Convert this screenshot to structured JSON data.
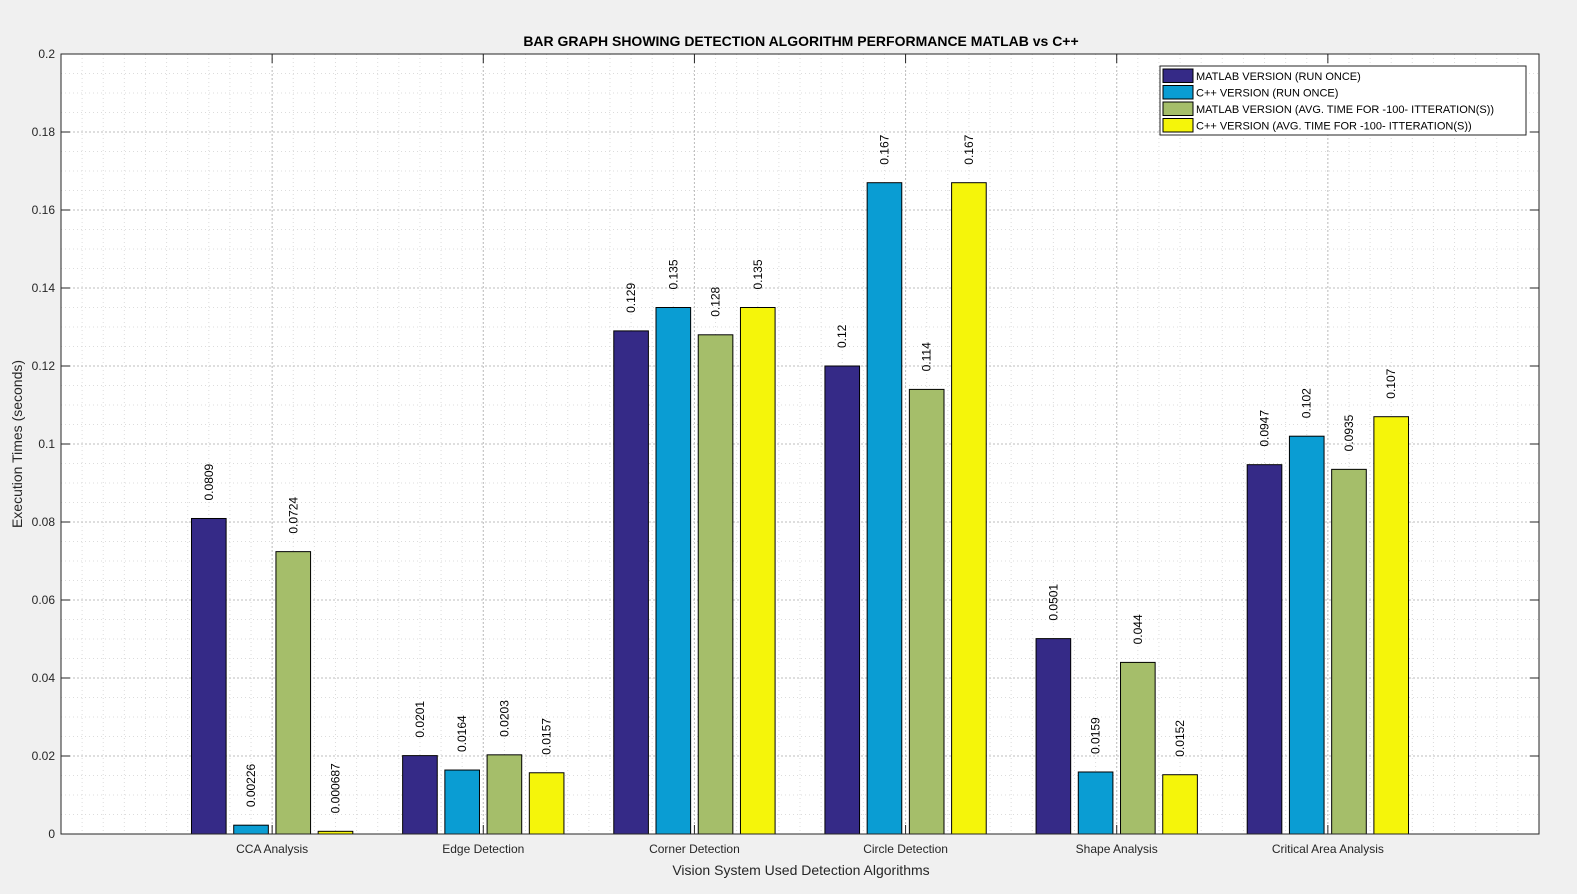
{
  "chart_data": {
    "type": "bar",
    "title": "BAR GRAPH SHOWING DETECTION ALGORITHM PERFORMANCE MATLAB vs C++",
    "xlabel": "Vision System Used Detection Algorithms",
    "ylabel": "Execution Times (seconds)",
    "ylim": [
      0,
      0.2
    ],
    "yticks": [
      0,
      0.02,
      0.04,
      0.06,
      0.08,
      0.1,
      0.12,
      0.14,
      0.16,
      0.18,
      0.2
    ],
    "ytick_labels": [
      "0",
      "0.02",
      "0.04",
      "0.06",
      "0.08",
      "0.1",
      "0.12",
      "0.14",
      "0.16",
      "0.18",
      "0.2"
    ],
    "grid": true,
    "minor_grid": true,
    "legend_position": "top-right",
    "categories": [
      "CCA Analysis",
      "Edge Detection",
      "Corner Detection",
      "Circle Detection",
      "Shape Analysis",
      "Critical Area Analysis"
    ],
    "series": [
      {
        "name": "MATLAB VERSION (RUN ONCE)",
        "color": "#352a87",
        "values": [
          0.0809,
          0.0201,
          0.129,
          0.12,
          0.0501,
          0.0947
        ],
        "labels": [
          "0.0809",
          "0.0201",
          "0.129",
          "0.12",
          "0.0501",
          "0.0947"
        ]
      },
      {
        "name": "C++ VERSION (RUN ONCE)",
        "color": "#0a9dd3",
        "values": [
          0.00226,
          0.0164,
          0.135,
          0.167,
          0.0159,
          0.102
        ],
        "labels": [
          "0.00226",
          "0.0164",
          "0.135",
          "0.167",
          "0.0159",
          "0.102"
        ]
      },
      {
        "name": "MATLAB VERSION (AVG. TIME FOR -100- ITTERATION(S))",
        "color": "#a5be6a",
        "values": [
          0.0724,
          0.0203,
          0.128,
          0.114,
          0.044,
          0.0935
        ],
        "labels": [
          "0.0724",
          "0.0203",
          "0.128",
          "0.114",
          "0.044",
          "0.0935"
        ]
      },
      {
        "name": "C++ VERSION (AVG. TIME FOR -100- ITTERATION(S))",
        "color": "#f5f50a",
        "values": [
          0.000687,
          0.0157,
          0.135,
          0.167,
          0.0152,
          0.107
        ],
        "labels": [
          "0.000687",
          "0.0157",
          "0.135",
          "0.167",
          "0.0152",
          "0.107"
        ]
      }
    ]
  }
}
